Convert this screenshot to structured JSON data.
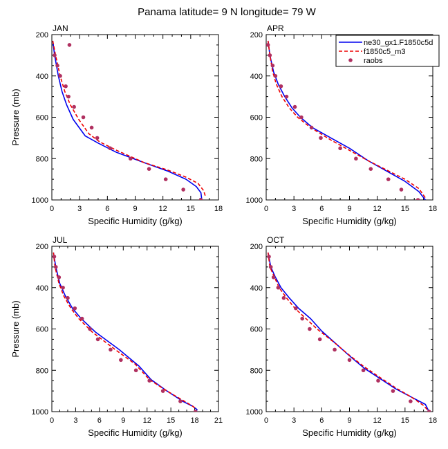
{
  "figure": {
    "title": "Panama  latitude= 9 N longitude= 79 W"
  },
  "legend": {
    "entries": [
      {
        "label": "ne30_gx1.F1850c5d",
        "color": "#0000ee",
        "style": "solid"
      },
      {
        "label": "f1850c5_m3",
        "color": "#ee0000",
        "style": "dashed"
      },
      {
        "label": "raobs",
        "color": "#b03060",
        "style": "marker"
      }
    ]
  },
  "chart_data": [
    {
      "type": "line",
      "panel_label": "JAN",
      "xlabel": "Specific Humidity (g/kg)",
      "ylabel": "Pressure (mb)",
      "xlim": [
        0,
        18
      ],
      "xticks": [
        0,
        3,
        6,
        9,
        12,
        15,
        18
      ],
      "ylim": [
        200,
        1000
      ],
      "yticks": [
        200,
        400,
        600,
        800,
        1000
      ],
      "y_inverted": true,
      "series": [
        {
          "name": "ne30_gx1.F1850c5d",
          "x": [
            0.1,
            0.3,
            0.7,
            1.1,
            1.6,
            2.3,
            3.6,
            5.0,
            7.0,
            10.0,
            12.5,
            14.5,
            15.6,
            16.1,
            16.2
          ],
          "y": [
            230,
            300,
            400,
            475,
            540,
            610,
            690,
            725,
            770,
            820,
            860,
            900,
            935,
            965,
            1000
          ]
        },
        {
          "name": "f1850c5_m3",
          "x": [
            0.1,
            0.4,
            0.9,
            1.4,
            2.0,
            2.9,
            4.0,
            5.2,
            7.0,
            10.0,
            12.5,
            14.5,
            15.8,
            16.4,
            16.6
          ],
          "y": [
            230,
            300,
            400,
            475,
            540,
            610,
            680,
            720,
            760,
            820,
            855,
            890,
            920,
            955,
            985
          ]
        },
        {
          "name": "raobs",
          "x": [
            1.9,
            0.3,
            0.6,
            0.9,
            1.5,
            1.8,
            2.4,
            3.4,
            4.3,
            4.9,
            6.3,
            8.5,
            10.5,
            12.3,
            14.2,
            16.1
          ],
          "y": [
            250,
            300,
            350,
            400,
            450,
            500,
            550,
            600,
            650,
            700,
            750,
            800,
            850,
            900,
            950,
            1000
          ]
        }
      ]
    },
    {
      "type": "line",
      "panel_label": "APR",
      "xlabel": "Specific Humidity (g/kg)",
      "ylabel": "",
      "xlim": [
        0,
        18
      ],
      "xticks": [
        0,
        3,
        6,
        9,
        12,
        15,
        18
      ],
      "ylim": [
        200,
        1000
      ],
      "yticks": [
        200,
        400,
        600,
        800,
        1000
      ],
      "y_inverted": true,
      "series": [
        {
          "name": "ne30_gx1.F1850c5d",
          "x": [
            0.2,
            0.4,
            0.8,
            1.3,
            2.0,
            2.8,
            3.7,
            5.0,
            7.0,
            9.0,
            11.0,
            13.0,
            15.0,
            16.5,
            17.2
          ],
          "y": [
            230,
            300,
            380,
            440,
            500,
            555,
            600,
            650,
            700,
            750,
            810,
            860,
            910,
            960,
            1000
          ]
        },
        {
          "name": "f1850c5_m3",
          "x": [
            0.2,
            0.4,
            0.7,
            1.1,
            1.7,
            2.5,
            3.4,
            4.8,
            7.0,
            9.0,
            11.0,
            13.0,
            15.0,
            16.5,
            17.2
          ],
          "y": [
            230,
            300,
            380,
            440,
            500,
            555,
            600,
            650,
            710,
            760,
            810,
            855,
            900,
            945,
            990
          ]
        },
        {
          "name": "raobs",
          "x": [
            0.2,
            0.4,
            0.7,
            1.0,
            1.6,
            2.2,
            3.1,
            3.8,
            4.9,
            5.9,
            8.0,
            9.7,
            11.3,
            13.2,
            14.6,
            16.4
          ],
          "y": [
            250,
            300,
            350,
            400,
            450,
            500,
            550,
            600,
            650,
            700,
            750,
            800,
            850,
            900,
            950,
            1000
          ]
        }
      ]
    },
    {
      "type": "line",
      "panel_label": "JUL",
      "xlabel": "Specific Humidity (g/kg)",
      "ylabel": "Pressure (mb)",
      "xlim": [
        0,
        21
      ],
      "xticks": [
        0,
        3,
        6,
        9,
        12,
        15,
        18,
        21
      ],
      "ylim": [
        200,
        1000
      ],
      "yticks": [
        200,
        400,
        600,
        800,
        1000
      ],
      "y_inverted": true,
      "series": [
        {
          "name": "ne30_gx1.F1850c5d",
          "x": [
            0.2,
            0.5,
            1.0,
            1.7,
            2.6,
            3.7,
            5.5,
            8.5,
            11.0,
            12.5,
            14.5,
            16.5,
            17.8,
            18.3,
            18.2
          ],
          "y": [
            230,
            300,
            380,
            440,
            500,
            550,
            615,
            700,
            780,
            845,
            900,
            950,
            975,
            990,
            1000
          ]
        },
        {
          "name": "f1850c5_m3",
          "x": [
            0.2,
            0.4,
            0.9,
            1.5,
            2.4,
            3.4,
            5.1,
            8.0,
            10.5,
            12.3,
            14.5,
            16.5,
            17.8,
            18.2
          ],
          "y": [
            230,
            300,
            380,
            440,
            500,
            550,
            615,
            700,
            770,
            845,
            900,
            945,
            975,
            990
          ]
        },
        {
          "name": "raobs",
          "x": [
            0.3,
            0.5,
            0.9,
            1.4,
            2.0,
            2.9,
            3.8,
            4.8,
            5.8,
            7.4,
            8.7,
            10.6,
            12.3,
            14.0,
            16.2,
            18.1
          ],
          "y": [
            250,
            300,
            350,
            400,
            450,
            500,
            550,
            600,
            650,
            700,
            750,
            800,
            850,
            900,
            950,
            1000
          ]
        }
      ]
    },
    {
      "type": "line",
      "panel_label": "OCT",
      "xlabel": "Specific Humidity (g/kg)",
      "ylabel": "",
      "xlim": [
        0,
        18
      ],
      "xticks": [
        0,
        3,
        6,
        9,
        12,
        15,
        18
      ],
      "ylim": [
        200,
        1000
      ],
      "yticks": [
        200,
        400,
        600,
        800,
        1000
      ],
      "y_inverted": true,
      "series": [
        {
          "name": "ne30_gx1.F1850c5d",
          "x": [
            0.2,
            0.5,
            1.0,
            1.6,
            2.5,
            3.5,
            4.8,
            6.0,
            7.5,
            9.0,
            10.6,
            12.3,
            14.0,
            15.7,
            17.2,
            17.6
          ],
          "y": [
            230,
            300,
            350,
            400,
            450,
            500,
            550,
            610,
            670,
            730,
            790,
            840,
            890,
            930,
            965,
            1000
          ]
        },
        {
          "name": "f1850c5_m3",
          "x": [
            0.2,
            0.4,
            0.9,
            1.4,
            2.2,
            3.1,
            4.3,
            5.5,
            7.2,
            8.8,
            10.5,
            12.3,
            14.0,
            15.7,
            17.0,
            17.5
          ],
          "y": [
            230,
            300,
            350,
            400,
            450,
            500,
            550,
            600,
            660,
            720,
            780,
            835,
            885,
            930,
            970,
            995
          ]
        },
        {
          "name": "raobs",
          "x": [
            0.3,
            0.5,
            0.8,
            1.3,
            1.9,
            3.2,
            3.9,
            4.7,
            5.8,
            7.4,
            9.0,
            10.5,
            12.1,
            13.7,
            15.6,
            17.6
          ],
          "y": [
            250,
            300,
            350,
            400,
            450,
            500,
            550,
            600,
            650,
            700,
            750,
            800,
            850,
            900,
            950,
            1000
          ]
        }
      ]
    }
  ]
}
